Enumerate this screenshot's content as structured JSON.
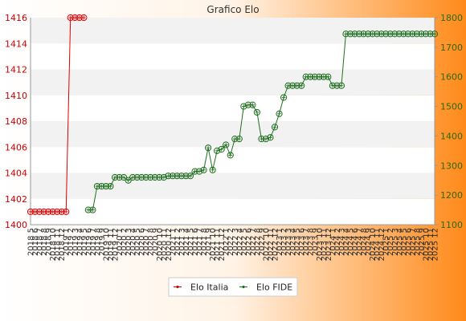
{
  "colors": {
    "background_left": "#ffffff",
    "background_right": "#ff8a1a",
    "band_a": "#ffffff",
    "band_b": "#f2f2f2",
    "italia": "#dd0000",
    "fide": "#1f6f1f",
    "left_axis_text": "#cc0000",
    "right_axis_text": "#2d6b00"
  },
  "chart_data": {
    "type": "line",
    "title": "Grafico Elo",
    "categories": [
      "2018 5",
      "2018 6",
      "2018 7",
      "2018 8",
      "2018 9",
      "2018 10",
      "2018 11",
      "2018 12",
      "2019 1",
      "2019 2",
      "2019 3",
      "2019 4",
      "2019 5",
      "2019 6",
      "2019 7",
      "2019 8",
      "2019 9",
      "2019 10",
      "2019 11",
      "2019 12",
      "2020 1",
      "2020 2",
      "2020 3",
      "2020 4",
      "2020 5",
      "2020 6",
      "2020 7",
      "2020 8",
      "2020 9",
      "2020 10",
      "2020 11",
      "2020 12",
      "2021 1",
      "2021 2",
      "2021 3",
      "2021 4",
      "2021 5",
      "2021 6",
      "2021 7",
      "2021 8",
      "2021 9",
      "2021 10",
      "2021 11",
      "2021 12",
      "2022 1",
      "2022 2",
      "2022 3",
      "2022 4",
      "2022 5",
      "2022 6",
      "2022 7",
      "2022 8",
      "2022 9",
      "2022 10",
      "2022 11",
      "2022 12",
      "2023 1",
      "2023 2",
      "2023 3",
      "2023 4",
      "2023 5",
      "2023 6",
      "2023 7",
      "2023 8",
      "2023 9",
      "2023 10",
      "2023 11",
      "2023 12",
      "2024 1",
      "2024 2",
      "2024 3",
      "2024 4",
      "2024 5",
      "2024 6",
      "2024 7",
      "2024 8",
      "2024 9",
      "2024 10",
      "2024 11",
      "2024 12",
      "2025 1",
      "2025 2",
      "2025 3",
      "2025 4",
      "2025 5",
      "2025 6",
      "2025 7",
      "2025 8",
      "2025 9",
      "2025 10",
      "2025 11",
      "2025 12"
    ],
    "series": [
      {
        "name": "Elo Italia",
        "axis": "left",
        "values": [
          1401,
          1401,
          1401,
          1401,
          1401,
          1401,
          1401,
          1401,
          1401,
          1416,
          1416,
          1416,
          1416,
          null,
          null,
          null,
          null,
          null,
          null,
          null,
          null,
          null,
          null,
          null,
          null,
          null,
          null,
          null,
          null,
          null,
          null,
          null,
          null,
          null,
          null,
          null,
          null,
          null,
          null,
          null,
          null,
          null,
          null,
          null,
          null,
          null,
          null,
          null,
          null,
          null,
          null,
          null,
          null,
          null,
          null,
          null,
          null,
          null,
          null,
          null,
          null,
          null,
          null,
          null,
          null,
          null,
          null,
          null,
          null,
          null,
          null,
          null,
          null,
          null,
          null,
          null,
          null,
          null,
          null,
          null,
          null,
          null,
          null,
          null,
          null,
          null,
          null,
          null,
          null,
          null,
          null,
          null
        ]
      },
      {
        "name": "Elo FIDE",
        "axis": "right",
        "values": [
          null,
          null,
          null,
          null,
          null,
          null,
          null,
          null,
          null,
          null,
          null,
          null,
          null,
          1150,
          1150,
          1230,
          1230,
          1230,
          1230,
          1260,
          1260,
          1260,
          1250,
          1260,
          1260,
          1260,
          1260,
          1260,
          1260,
          1260,
          1260,
          1265,
          1265,
          1265,
          1265,
          1265,
          1265,
          1280,
          1280,
          1285,
          1360,
          1285,
          1350,
          1355,
          1370,
          1335,
          1390,
          1390,
          1500,
          1505,
          1505,
          1480,
          1390,
          1390,
          1395,
          1430,
          1475,
          1530,
          1570,
          1570,
          1570,
          1570,
          1600,
          1600,
          1600,
          1600,
          1600,
          1600,
          1570,
          1570,
          1570,
          1745,
          1745,
          1745,
          1745,
          1745,
          1745,
          1745,
          1745,
          1745,
          1745,
          1745,
          1745,
          1745,
          1745,
          1745,
          1745,
          1745,
          1745,
          1745,
          1745,
          1745
        ]
      }
    ],
    "ylim_left": [
      1400,
      1416
    ],
    "yticks_left": [
      1400,
      1402,
      1404,
      1406,
      1408,
      1410,
      1412,
      1414,
      1416
    ],
    "ylim_right": [
      1100,
      1800
    ],
    "yticks_right": [
      1100,
      1200,
      1300,
      1400,
      1500,
      1600,
      1700,
      1800
    ],
    "grid": "horizontal bands",
    "legend_position": "bottom"
  }
}
